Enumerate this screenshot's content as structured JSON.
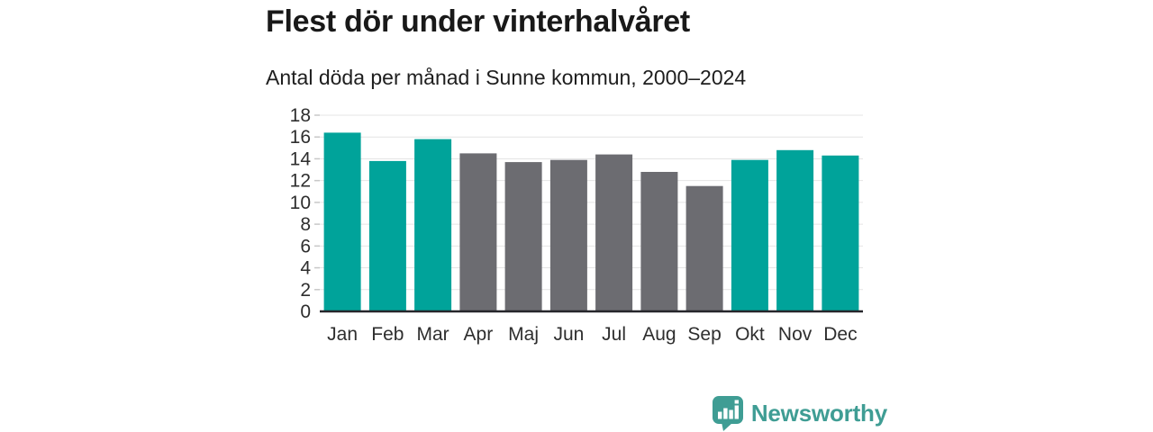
{
  "header": {
    "title": "Flest dör under vinterhalvåret",
    "subtitle": "Antal döda per månad i Sunne kommun, 2000–2024"
  },
  "logo": {
    "text": "Newsworthy",
    "icon": "newsworthy-speech-bubble-bar-chart-icon",
    "color": "#3f9d94"
  },
  "chart_data": {
    "type": "bar",
    "title": "Flest dör under vinterhalvåret",
    "subtitle": "Antal döda per månad i Sunne kommun, 2000–2024",
    "categories": [
      "Jan",
      "Feb",
      "Mar",
      "Apr",
      "Maj",
      "Jun",
      "Jul",
      "Aug",
      "Sep",
      "Okt",
      "Nov",
      "Dec"
    ],
    "values": [
      16.4,
      13.8,
      15.8,
      14.5,
      13.7,
      13.9,
      14.4,
      12.8,
      11.5,
      13.9,
      14.8,
      14.3
    ],
    "bar_colors": [
      "#00a39a",
      "#00a39a",
      "#00a39a",
      "#6c6c71",
      "#6c6c71",
      "#6c6c71",
      "#6c6c71",
      "#6c6c71",
      "#6c6c71",
      "#00a39a",
      "#00a39a",
      "#00a39a"
    ],
    "xlabel": "",
    "ylabel": "",
    "ylim": [
      0,
      18
    ],
    "ytick_step": 2,
    "yticks": [
      0,
      2,
      4,
      6,
      8,
      10,
      12,
      14,
      16,
      18
    ],
    "grid": true,
    "legend": "none",
    "colors": {
      "highlight_teal": "#00a39a",
      "neutral_gray": "#6c6c71",
      "gridline": "#e4e4e4",
      "tick_mark": "#c8c8c8",
      "axis_line": "#26262b",
      "tick_label": "#2e2e2e"
    }
  }
}
